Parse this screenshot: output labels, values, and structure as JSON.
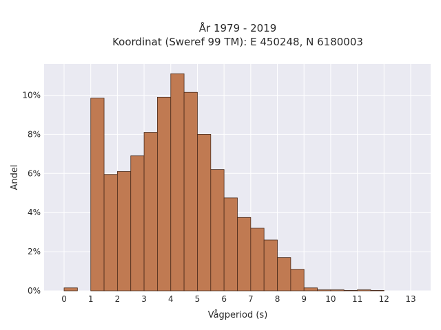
{
  "chart_data": {
    "type": "bar",
    "title_line1": "År 1979 - 2019",
    "title_line2": "Koordinat (Sweref 99 TM): E 450248, N 6180003",
    "xlabel": "Vågperiod (s)",
    "ylabel": "Andel",
    "x_ticks": [
      "0",
      "1",
      "2",
      "3",
      "4",
      "5",
      "6",
      "7",
      "8",
      "9",
      "10",
      "11",
      "12",
      "13"
    ],
    "y_ticks": [
      "0%",
      "2%",
      "4%",
      "6%",
      "8%",
      "10%"
    ],
    "xlim": [
      -0.75,
      13.75
    ],
    "ylim": [
      0,
      11.6
    ],
    "bin_width": 0.5,
    "bin_starts": [
      0,
      0.5,
      1,
      1.5,
      2,
      2.5,
      3,
      3.5,
      4,
      4.5,
      5,
      5.5,
      6,
      6.5,
      7,
      7.5,
      8,
      8.5,
      9,
      9.5,
      10,
      10.5,
      11,
      11.5
    ],
    "values": [
      0.15,
      0,
      9.85,
      5.95,
      6.1,
      6.9,
      8.1,
      9.9,
      11.1,
      10.15,
      8.0,
      6.2,
      4.75,
      3.75,
      3.2,
      2.6,
      1.7,
      1.1,
      0.15,
      0.05,
      0.05,
      0.02,
      0.05,
      0.02
    ],
    "grid": true,
    "colors": {
      "bar": "#c07a52",
      "edge": "#4a2a1a",
      "background": "#eaeaf2"
    }
  }
}
